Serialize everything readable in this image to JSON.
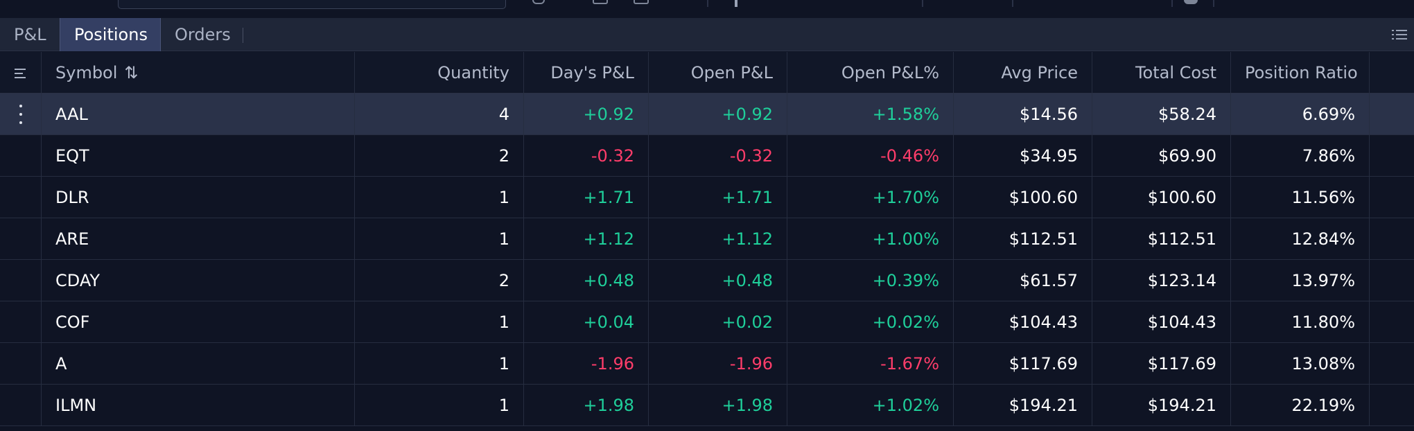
{
  "tabs": [
    {
      "label": "P&L"
    },
    {
      "label": "Positions"
    },
    {
      "label": "Orders"
    }
  ],
  "active_tab": "Positions",
  "columns": {
    "symbol": "Symbol",
    "sort_glyph": "⇅",
    "quantity": "Quantity",
    "days_pl": "Day's P&L",
    "open_pl": "Open P&L",
    "open_pl_pct": "Open P&L%",
    "avg_price": "Avg Price",
    "total_cost": "Total Cost",
    "position_ratio": "Position Ratio"
  },
  "rows": [
    {
      "symbol": "AAL",
      "quantity": "4",
      "days_pl": "+0.92",
      "open_pl": "+0.92",
      "open_pl_pct": "+1.58%",
      "avg_price": "$14.56",
      "total_cost": "$58.24",
      "position_ratio": "6.69%",
      "sign": "pos"
    },
    {
      "symbol": "EQT",
      "quantity": "2",
      "days_pl": "-0.32",
      "open_pl": "-0.32",
      "open_pl_pct": "-0.46%",
      "avg_price": "$34.95",
      "total_cost": "$69.90",
      "position_ratio": "7.86%",
      "sign": "neg"
    },
    {
      "symbol": "DLR",
      "quantity": "1",
      "days_pl": "+1.71",
      "open_pl": "+1.71",
      "open_pl_pct": "+1.70%",
      "avg_price": "$100.60",
      "total_cost": "$100.60",
      "position_ratio": "11.56%",
      "sign": "pos"
    },
    {
      "symbol": "ARE",
      "quantity": "1",
      "days_pl": "+1.12",
      "open_pl": "+1.12",
      "open_pl_pct": "+1.00%",
      "avg_price": "$112.51",
      "total_cost": "$112.51",
      "position_ratio": "12.84%",
      "sign": "pos"
    },
    {
      "symbol": "CDAY",
      "quantity": "2",
      "days_pl": "+0.48",
      "open_pl": "+0.48",
      "open_pl_pct": "+0.39%",
      "avg_price": "$61.57",
      "total_cost": "$123.14",
      "position_ratio": "13.97%",
      "sign": "pos"
    },
    {
      "symbol": "COF",
      "quantity": "1",
      "days_pl": "+0.04",
      "open_pl": "+0.02",
      "open_pl_pct": "+0.02%",
      "avg_price": "$104.43",
      "total_cost": "$104.43",
      "position_ratio": "11.80%",
      "sign": "pos"
    },
    {
      "symbol": "A",
      "quantity": "1",
      "days_pl": "-1.96",
      "open_pl": "-1.96",
      "open_pl_pct": "-1.67%",
      "avg_price": "$117.69",
      "total_cost": "$117.69",
      "position_ratio": "13.08%",
      "sign": "neg"
    },
    {
      "symbol": "ILMN",
      "quantity": "1",
      "days_pl": "+1.98",
      "open_pl": "+1.98",
      "open_pl_pct": "+1.02%",
      "avg_price": "$194.21",
      "total_cost": "$194.21",
      "position_ratio": "22.19%",
      "sign": "pos"
    }
  ],
  "selected_row": "AAL",
  "colors": {
    "positive": "#1fcf9a",
    "negative": "#ff3d6a",
    "active_tab_bg": "#343f63"
  },
  "icons": {
    "header_menu": "hamburger-icon",
    "row_menu": "kebab-icon",
    "columns_menu": "list-icon"
  }
}
